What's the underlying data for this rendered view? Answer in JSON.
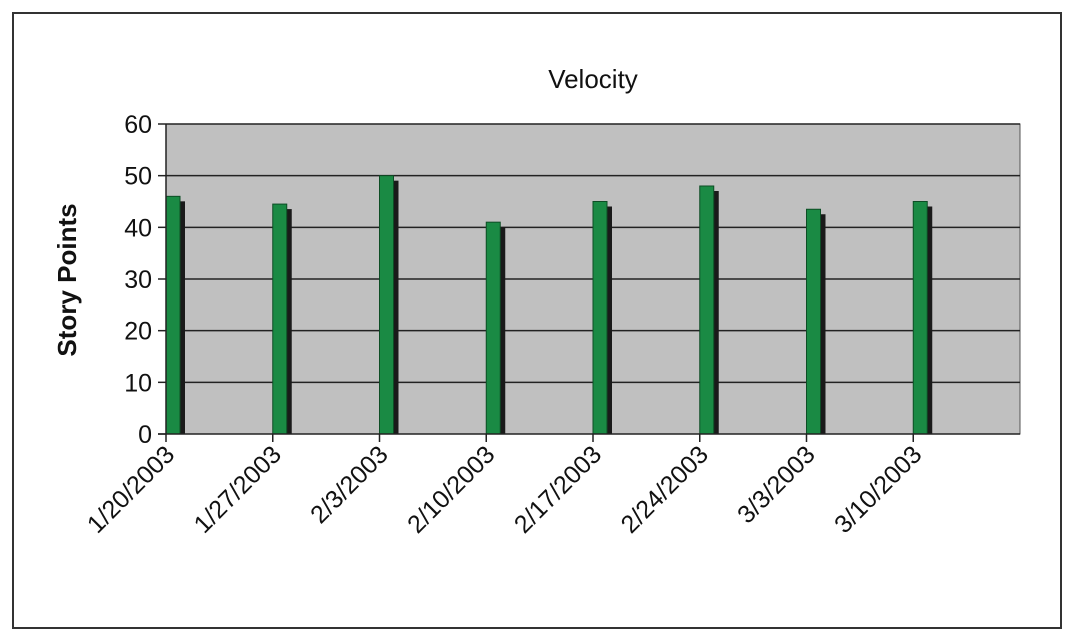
{
  "chart_data": {
    "type": "bar",
    "title": "Velocity",
    "xlabel": "",
    "ylabel": "Story Points",
    "ylim": [
      0,
      60
    ],
    "yticks": [
      0,
      10,
      20,
      30,
      40,
      50,
      60
    ],
    "categories": [
      "1/20/2003",
      "1/27/2003",
      "2/3/2003",
      "2/10/2003",
      "2/17/2003",
      "2/24/2003",
      "3/3/2003",
      "3/10/2003"
    ],
    "values": [
      46,
      44.5,
      50,
      41,
      45,
      48,
      43.5,
      45
    ],
    "grid": true,
    "legend": "none",
    "colors": {
      "bar": "#1a8a44",
      "bar_shadow": "#1a1a1a",
      "plot_background": "#c0c0c0",
      "gridline": "#222222"
    }
  }
}
